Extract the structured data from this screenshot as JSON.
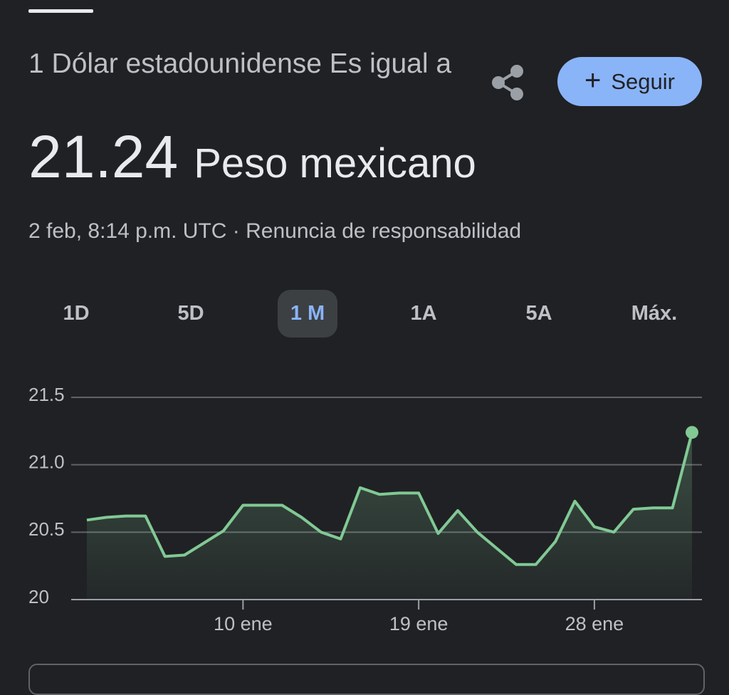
{
  "header": {
    "title": "1 Dólar estadounidense Es igual a",
    "value": 21.24,
    "unit": "Peso mexicano",
    "timestamp": "2 feb, 8:14 p.m. UTC",
    "separator": "·",
    "disclaimer": "Renuncia de responsabilidad",
    "follow_button": "Seguir"
  },
  "tabs": {
    "items": [
      "1D",
      "5D",
      "1 M",
      "1A",
      "5A",
      "Máx."
    ],
    "selected": 2
  },
  "chart_data": {
    "type": "line",
    "color": "#81c995",
    "categories": [
      null,
      null,
      null,
      null,
      null,
      null,
      null,
      null,
      "10 ene",
      null,
      null,
      null,
      null,
      null,
      null,
      null,
      null,
      "19 ene",
      null,
      null,
      null,
      null,
      null,
      null,
      null,
      null,
      "28 ene",
      null,
      null,
      null,
      null,
      null
    ],
    "values": [
      20.59,
      20.61,
      20.62,
      20.62,
      20.32,
      20.33,
      20.42,
      20.51,
      20.7,
      20.7,
      20.7,
      20.61,
      20.5,
      20.45,
      20.83,
      20.78,
      20.79,
      20.79,
      20.49,
      20.66,
      20.5,
      20.38,
      20.26,
      20.26,
      20.43,
      20.73,
      20.54,
      20.5,
      20.67,
      20.68,
      20.68,
      21.24
    ],
    "ylim": [
      20,
      21.5
    ],
    "yticks": [
      20,
      20.5,
      {
        "value": 21,
        "label": "21.0"
      },
      21.5
    ],
    "grid": true
  }
}
